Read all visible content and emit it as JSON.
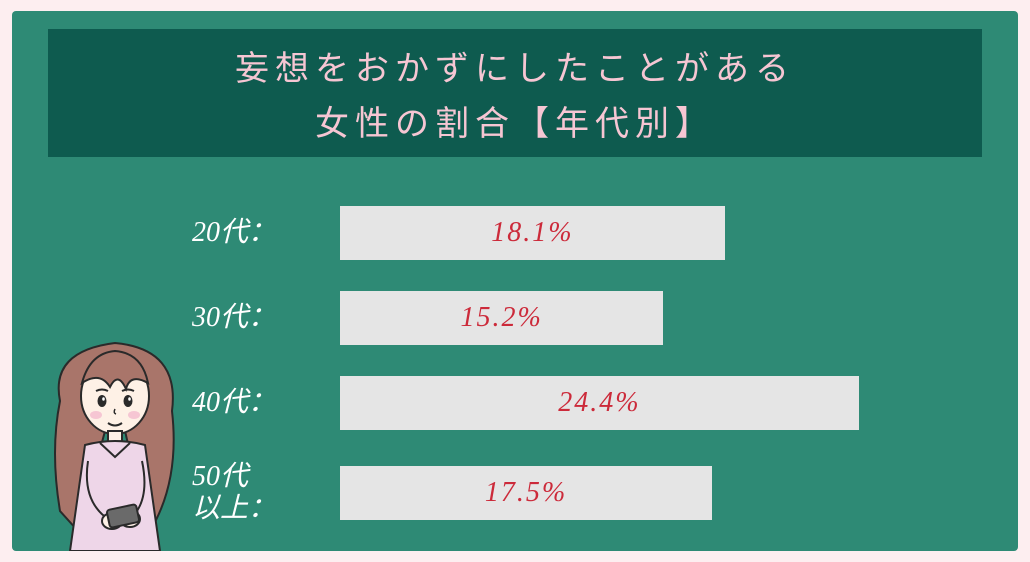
{
  "title": {
    "line1": "妄想をおかずにしたことがある",
    "line2": "女性の割合【年代別】"
  },
  "chart": {
    "type": "bar",
    "orientation": "horizontal",
    "background_color": "#2e8a75",
    "header_bg": "#0e5b4f",
    "title_color": "#f6c6d3",
    "label_color": "#ffffff",
    "bar_fill": "#e5e5e5",
    "value_color": "#cc2a3a",
    "outer_bg": "#fdeef0",
    "title_fontsize": 34,
    "label_fontsize": 28,
    "value_fontsize": 28,
    "max_value_ref": 30,
    "rows": [
      {
        "label": "20代：",
        "value": 18.1,
        "display": "18.1%"
      },
      {
        "label": "30代：",
        "value": 15.2,
        "display": "15.2%"
      },
      {
        "label": "40代：",
        "value": 24.4,
        "display": "24.4%"
      },
      {
        "label": "50代\n以上：",
        "value": 17.5,
        "display": "17.5%"
      }
    ]
  }
}
